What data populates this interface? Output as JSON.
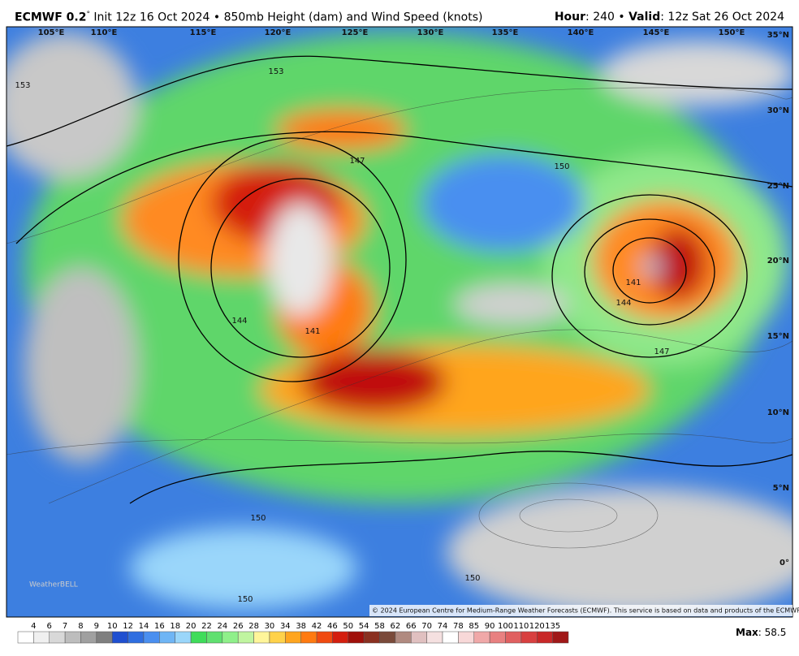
{
  "header": {
    "model": "ECMWF 0.2",
    "degree": "°",
    "init": "Init 12z 16 Oct 2024",
    "bullet": "•",
    "product": "850mb Height (dam) and Wind Speed (knots)",
    "hour_label": "Hour",
    "hour": ": 240",
    "valid_label": "Valid",
    "valid": ": 12z Sat 26 Oct 2024"
  },
  "map": {
    "longitudes": [
      "105°E",
      "110°E",
      "115°E",
      "120°E",
      "125°E",
      "130°E",
      "135°E",
      "140°E",
      "145°E",
      "150°E"
    ],
    "latitudes": [
      "35°N",
      "30°N",
      "25°N",
      "20°N",
      "15°N",
      "10°N",
      "5°N",
      "0°"
    ],
    "contour_labels": [
      "153",
      "153",
      "147",
      "150",
      "144",
      "141",
      "141",
      "144",
      "147",
      "150",
      "150",
      "150"
    ],
    "watermark": "WeatherBELL",
    "copyright": "© 2024 European Centre for Medium-Range Weather Forecasts (ECMWF). This service is based on data and products of the ECMWF."
  },
  "legend": {
    "levels": [
      4,
      6,
      7,
      8,
      9,
      10,
      12,
      14,
      16,
      18,
      20,
      22,
      24,
      26,
      28,
      30,
      34,
      38,
      42,
      46,
      50,
      54,
      58,
      62,
      66,
      70,
      74,
      78,
      85,
      90,
      100,
      110,
      120,
      135
    ],
    "colors": [
      "#ffffff",
      "#f0f0f0",
      "#d8d8d8",
      "#bdbdbd",
      "#a0a0a0",
      "#7f7f7f",
      "#1f4fd0",
      "#2f6ee0",
      "#4a8ff0",
      "#6fb5f5",
      "#9ad6fa",
      "#3fdc5a",
      "#60e070",
      "#8ff08a",
      "#c0f5a0",
      "#fff59a",
      "#ffd24a",
      "#ffa51f",
      "#ff7a10",
      "#f04a10",
      "#d41e0e",
      "#a0100a",
      "#8a3020",
      "#7a4a3a",
      "#b08a80",
      "#e0c0c0",
      "#f5e0e0",
      "#ffffff",
      "#f8d8d8",
      "#f0a8a8",
      "#e88080",
      "#e06060",
      "#d84040",
      "#c82828",
      "#a01818"
    ],
    "max_label": "Max",
    "max": ": 58.5"
  }
}
